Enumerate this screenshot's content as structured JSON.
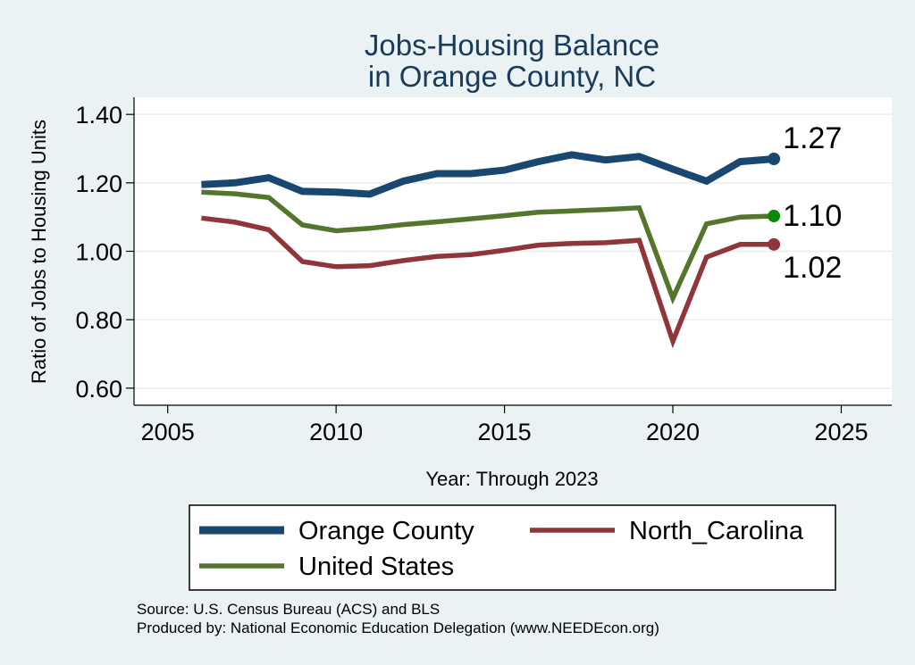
{
  "chart_data": {
    "type": "line",
    "title": [
      "Jobs-Housing Balance",
      "in Orange County, NC"
    ],
    "xlabel": "Year: Through 2023",
    "ylabel": "Ratio of Jobs to Housing Units",
    "xlim": [
      2004,
      2026.5
    ],
    "ylim": [
      0.55,
      1.45
    ],
    "x_ticks": [
      2005,
      2010,
      2015,
      2020,
      2025
    ],
    "y_ticks": [
      0.6,
      0.8,
      1.0,
      1.2,
      1.4
    ],
    "y_tick_labels": [
      "0.60",
      "0.80",
      "1.00",
      "1.20",
      "1.40"
    ],
    "x": [
      2006,
      2007,
      2008,
      2009,
      2010,
      2011,
      2012,
      2013,
      2014,
      2015,
      2016,
      2017,
      2018,
      2019,
      2020,
      2021,
      2022,
      2023
    ],
    "series": [
      {
        "name": "Orange County",
        "color": "#1a476f",
        "end_marker_color": "#1a476f",
        "end_label": "1.27",
        "values": [
          1.195,
          1.2,
          1.215,
          1.175,
          1.173,
          1.167,
          1.205,
          1.227,
          1.227,
          1.237,
          1.262,
          1.282,
          1.267,
          1.277,
          1.24,
          1.205,
          1.262,
          1.27
        ]
      },
      {
        "name": "United States",
        "color": "#55752f",
        "end_marker_color": "#0a8a0a",
        "end_label": "1.10",
        "values": [
          1.173,
          1.168,
          1.157,
          1.077,
          1.06,
          1.067,
          1.078,
          1.086,
          1.095,
          1.104,
          1.114,
          1.118,
          1.122,
          1.127,
          0.863,
          1.08,
          1.1,
          1.103
        ]
      },
      {
        "name": "North_Carolina",
        "color": "#90353b",
        "end_marker_color": "#90353b",
        "end_label": "1.02",
        "values": [
          1.097,
          1.085,
          1.063,
          0.97,
          0.955,
          0.958,
          0.973,
          0.985,
          0.99,
          1.003,
          1.018,
          1.023,
          1.025,
          1.032,
          0.737,
          0.983,
          1.02,
          1.02
        ]
      }
    ],
    "legend": [
      {
        "label": "Orange County",
        "series": 0
      },
      {
        "label": "North_Carolina",
        "series": 2
      },
      {
        "label": "United States",
        "series": 1
      }
    ],
    "grid": true,
    "legend_position": "bottom",
    "source_lines": [
      "Source: U.S. Census Bureau (ACS) and BLS",
      "Produced by: National Economic Education Delegation (www.NEEDEcon.org)"
    ]
  }
}
